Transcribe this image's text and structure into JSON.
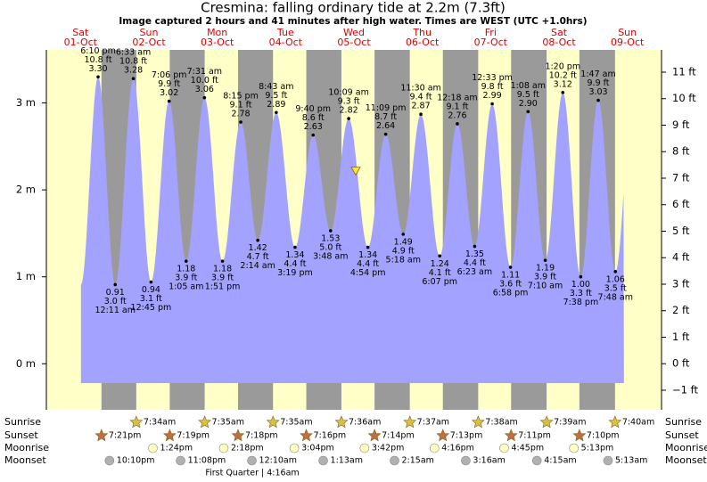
{
  "chart_data": {
    "type": "tide",
    "title": "Cresmina: falling  ordinary tide at 2.2m (7.3ft)",
    "subtitle": "Image captured 2 hours and 41 minutes after high water. Times are WEST (UTC +1.0hrs)",
    "current_level": 2.2,
    "days": [
      {
        "weekday": "Sat",
        "date": "01-Oct",
        "sunrise": null,
        "sunset": "7:21pm",
        "moonrise": null,
        "moonset": "10:10pm"
      },
      {
        "weekday": "Sun",
        "date": "02-Oct",
        "sunrise": "7:34am",
        "sunset": "7:19pm",
        "moonrise": "1:24pm",
        "moonset": "11:08pm"
      },
      {
        "weekday": "Mon",
        "date": "03-Oct",
        "sunrise": "7:35am",
        "sunset": "7:18pm",
        "moonrise": "2:18pm",
        "moonset": null
      },
      {
        "weekday": "Tue",
        "date": "04-Oct",
        "sunrise": "7:35am",
        "sunset": "7:16pm",
        "moonrise": "3:04pm",
        "moonset": "12:10am"
      },
      {
        "weekday": "Wed",
        "date": "05-Oct",
        "sunrise": "7:36am",
        "sunset": "7:14pm",
        "moonrise": "3:42pm",
        "moonset": "1:13am"
      },
      {
        "weekday": "Thu",
        "date": "06-Oct",
        "sunrise": "7:37am",
        "sunset": "7:13pm",
        "moonrise": "4:16pm",
        "moonset": "2:15am"
      },
      {
        "weekday": "Fri",
        "date": "07-Oct",
        "sunrise": "7:38am",
        "sunset": "7:11pm",
        "moonrise": "4:45pm",
        "moonset": "3:16am"
      },
      {
        "weekday": "Sat",
        "date": "08-Oct",
        "sunrise": "7:39am",
        "sunset": "7:10pm",
        "moonrise": "5:13pm",
        "moonset": "4:15am"
      },
      {
        "weekday": "Sun",
        "date": "09-Oct",
        "sunrise": "7:40am",
        "sunset": null,
        "moonrise": null,
        "moonset": "5:13am"
      }
    ],
    "row_labels": {
      "sunrise": "Sunrise",
      "sunset": "Sunset",
      "moonrise": "Moonrise",
      "moonset": "Moonset"
    },
    "moon_phase": "First Quarter | 4:16am",
    "tide_times": [
      "6:10 pm",
      "12:11 am",
      "6:33 am",
      "12:45 pm",
      "7:06 pm",
      "1:05 am",
      "7:31 am",
      "1:51 pm",
      "8:15 pm",
      "2:14 am",
      "8:43 am",
      "3:19 pm",
      "9:40 pm",
      "3:48 am",
      "10:09 am",
      "4:54 pm",
      "11:09 pm",
      "5:18 am",
      "11:30 am",
      "6:07 pm",
      "12:18 am",
      "6:23 am",
      "12:33 pm",
      "6:58 pm",
      "1:08 am",
      "7:10 am",
      "1:20 pm",
      "7:38 pm",
      "1:47 am",
      "7:48 am"
    ],
    "values": [
      3.3,
      0.91,
      3.28,
      0.94,
      3.02,
      1.18,
      3.06,
      1.18,
      2.78,
      1.42,
      2.89,
      1.34,
      2.63,
      1.53,
      2.82,
      1.34,
      2.64,
      1.49,
      2.87,
      1.24,
      2.76,
      1.35,
      2.99,
      1.11,
      2.9,
      1.19,
      3.12,
      1.0,
      3.03,
      1.06
    ],
    "value_labels": [
      "3.30",
      "0.91",
      "3.28",
      "0.94",
      "3.02",
      "1.18",
      "3.06",
      "1.18",
      "2.78",
      "1.42",
      "2.89",
      "1.34",
      "2.63",
      "1.53",
      "2.82",
      "1.34",
      "2.64",
      "1.49",
      "2.87",
      "1.24",
      "2.76",
      "1.35",
      "2.99",
      "1.11",
      "2.90",
      "1.19",
      "3.12",
      "1.00",
      "3.03",
      "1.06"
    ],
    "ft_labels": [
      "10.8 ft",
      "3.0 ft",
      "10.8 ft",
      "3.1 ft",
      "9.9 ft",
      "3.9 ft",
      "10.0 ft",
      "3.9 ft",
      "9.1 ft",
      "4.7 ft",
      "9.5 ft",
      "4.4 ft",
      "8.6 ft",
      "5.0 ft",
      "9.3 ft",
      "4.4 ft",
      "8.7 ft",
      "4.9 ft",
      "9.4 ft",
      "4.1 ft",
      "9.1 ft",
      "4.4 ft",
      "9.8 ft",
      "3.6 ft",
      "9.5 ft",
      "3.9 ft",
      "10.2 ft",
      "3.3 ft",
      "9.9 ft",
      "3.5 ft"
    ],
    "ylim": [
      -0.53,
      3.61
    ],
    "yticks": [
      {
        "value": 0,
        "label": "0 m"
      },
      {
        "value": 1,
        "label": "1 m"
      },
      {
        "value": 2,
        "label": "2 m"
      },
      {
        "value": 3,
        "label": "3 m"
      }
    ],
    "y2lim": [
      -1.74,
      11.84
    ],
    "y2ticks": [
      {
        "value": -1,
        "label": "−1 ft"
      },
      {
        "value": 0,
        "label": "0 ft"
      },
      {
        "value": 1,
        "label": "1 ft"
      },
      {
        "value": 2,
        "label": "2 ft"
      },
      {
        "value": 3,
        "label": "3 ft"
      },
      {
        "value": 4,
        "label": "4 ft"
      },
      {
        "value": 5,
        "label": "5 ft"
      },
      {
        "value": 6,
        "label": "6 ft"
      },
      {
        "value": 7,
        "label": "7 ft"
      },
      {
        "value": 8,
        "label": "8 ft"
      },
      {
        "value": 9,
        "label": "9 ft"
      },
      {
        "value": 10,
        "label": "10 ft"
      },
      {
        "value": 11,
        "label": "11 ft"
      }
    ],
    "colors": {
      "tide": "#a3a3ff",
      "day": "#ffffc8",
      "night": "#9a9a9a",
      "date": "#dd0000",
      "sunrise": "#d8c040",
      "sunset": "#c07040",
      "moonrise": "#ffffc0",
      "moonset": "#b0b0b0",
      "marker": "#ffe040"
    }
  }
}
